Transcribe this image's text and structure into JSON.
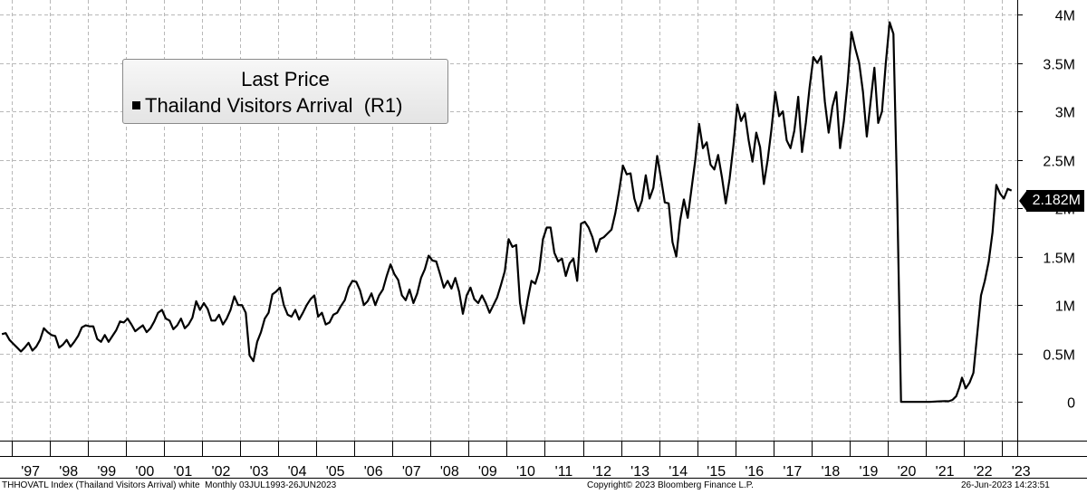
{
  "legend": {
    "title": "Last Price",
    "entry": "Thailand Visitors Arrival  (R1)"
  },
  "last_value_label": "2.182M",
  "footer": {
    "left": "THHOVATL Index (Thailand Visitors Arrival) white  Monthly 03JUL1993-26JUN2023",
    "center": "Copyright© 2023 Bloomberg Finance L.P.",
    "right": "26-Jun-2023 14:23:51"
  },
  "chart_data": {
    "type": "line",
    "title": "",
    "xlabel": "",
    "ylabel": "",
    "y_axis_side": "right",
    "grid": "dashed vertical and horizontal",
    "legend_placement": "top-left",
    "ylim": [
      -400000,
      4150000
    ],
    "yticks": [
      {
        "value": 0,
        "label": "0"
      },
      {
        "value": 500000,
        "label": "0.5M"
      },
      {
        "value": 1000000,
        "label": "1M"
      },
      {
        "value": 1500000,
        "label": "1.5M"
      },
      {
        "value": 2000000,
        "label": "2M"
      },
      {
        "value": 2500000,
        "label": "2.5M"
      },
      {
        "value": 3000000,
        "label": "3M"
      },
      {
        "value": 3500000,
        "label": "3.5M"
      },
      {
        "value": 4000000,
        "label": "4M"
      }
    ],
    "xrange": [
      1996.7,
      2023.4
    ],
    "xticks": [
      "'97",
      "'98",
      "'99",
      "'00",
      "'01",
      "'02",
      "'03",
      "'04",
      "'05",
      "'06",
      "'07",
      "'08",
      "'09",
      "'10",
      "'11",
      "'12",
      "'13",
      "'14",
      "'15",
      "'16",
      "'17",
      "'18",
      "'19",
      "'20",
      "'21",
      "'22",
      "'23"
    ],
    "series": [
      {
        "name": "Thailand Visitors Arrival",
        "color": "#000000",
        "points": [
          [
            1996.75,
            700000
          ],
          [
            1996.85,
            710000
          ],
          [
            1996.95,
            640000
          ],
          [
            1997.05,
            600000
          ],
          [
            1997.15,
            560000
          ],
          [
            1997.25,
            520000
          ],
          [
            1997.35,
            560000
          ],
          [
            1997.45,
            610000
          ],
          [
            1997.55,
            530000
          ],
          [
            1997.65,
            570000
          ],
          [
            1997.75,
            640000
          ],
          [
            1997.85,
            760000
          ],
          [
            1997.95,
            720000
          ],
          [
            1998.05,
            690000
          ],
          [
            1998.15,
            680000
          ],
          [
            1998.25,
            560000
          ],
          [
            1998.35,
            590000
          ],
          [
            1998.45,
            640000
          ],
          [
            1998.55,
            570000
          ],
          [
            1998.65,
            620000
          ],
          [
            1998.75,
            680000
          ],
          [
            1998.85,
            770000
          ],
          [
            1998.95,
            790000
          ],
          [
            1999.05,
            780000
          ],
          [
            1999.15,
            780000
          ],
          [
            1999.25,
            650000
          ],
          [
            1999.35,
            620000
          ],
          [
            1999.45,
            690000
          ],
          [
            1999.55,
            620000
          ],
          [
            1999.65,
            680000
          ],
          [
            1999.75,
            740000
          ],
          [
            1999.85,
            830000
          ],
          [
            1999.95,
            820000
          ],
          [
            2000.05,
            860000
          ],
          [
            2000.15,
            800000
          ],
          [
            2000.25,
            730000
          ],
          [
            2000.35,
            760000
          ],
          [
            2000.45,
            790000
          ],
          [
            2000.55,
            720000
          ],
          [
            2000.65,
            760000
          ],
          [
            2000.75,
            830000
          ],
          [
            2000.85,
            920000
          ],
          [
            2000.95,
            950000
          ],
          [
            2001.05,
            860000
          ],
          [
            2001.15,
            840000
          ],
          [
            2001.25,
            750000
          ],
          [
            2001.35,
            790000
          ],
          [
            2001.45,
            860000
          ],
          [
            2001.55,
            760000
          ],
          [
            2001.65,
            800000
          ],
          [
            2001.75,
            870000
          ],
          [
            2001.85,
            1040000
          ],
          [
            2001.95,
            950000
          ],
          [
            2002.05,
            1020000
          ],
          [
            2002.15,
            960000
          ],
          [
            2002.25,
            840000
          ],
          [
            2002.35,
            840000
          ],
          [
            2002.45,
            900000
          ],
          [
            2002.55,
            800000
          ],
          [
            2002.65,
            860000
          ],
          [
            2002.75,
            950000
          ],
          [
            2002.85,
            1090000
          ],
          [
            2002.95,
            1000000
          ],
          [
            2003.05,
            1000000
          ],
          [
            2003.15,
            920000
          ],
          [
            2003.25,
            480000
          ],
          [
            2003.35,
            420000
          ],
          [
            2003.45,
            620000
          ],
          [
            2003.55,
            720000
          ],
          [
            2003.65,
            860000
          ],
          [
            2003.75,
            920000
          ],
          [
            2003.85,
            1110000
          ],
          [
            2003.95,
            1140000
          ],
          [
            2004.05,
            1180000
          ],
          [
            2004.15,
            1000000
          ],
          [
            2004.25,
            900000
          ],
          [
            2004.35,
            880000
          ],
          [
            2004.45,
            950000
          ],
          [
            2004.55,
            850000
          ],
          [
            2004.65,
            920000
          ],
          [
            2004.75,
            1000000
          ],
          [
            2004.85,
            1060000
          ],
          [
            2004.95,
            1100000
          ],
          [
            2005.05,
            880000
          ],
          [
            2005.15,
            920000
          ],
          [
            2005.25,
            800000
          ],
          [
            2005.35,
            820000
          ],
          [
            2005.45,
            900000
          ],
          [
            2005.55,
            920000
          ],
          [
            2005.65,
            990000
          ],
          [
            2005.75,
            1050000
          ],
          [
            2005.85,
            1180000
          ],
          [
            2005.95,
            1250000
          ],
          [
            2006.05,
            1240000
          ],
          [
            2006.15,
            1150000
          ],
          [
            2006.25,
            1000000
          ],
          [
            2006.35,
            1040000
          ],
          [
            2006.45,
            1120000
          ],
          [
            2006.55,
            1000000
          ],
          [
            2006.65,
            1100000
          ],
          [
            2006.75,
            1160000
          ],
          [
            2006.85,
            1300000
          ],
          [
            2006.95,
            1420000
          ],
          [
            2007.05,
            1320000
          ],
          [
            2007.15,
            1260000
          ],
          [
            2007.25,
            1100000
          ],
          [
            2007.35,
            1050000
          ],
          [
            2007.45,
            1160000
          ],
          [
            2007.55,
            1020000
          ],
          [
            2007.65,
            1120000
          ],
          [
            2007.75,
            1280000
          ],
          [
            2007.85,
            1370000
          ],
          [
            2007.95,
            1510000
          ],
          [
            2008.05,
            1460000
          ],
          [
            2008.15,
            1450000
          ],
          [
            2008.25,
            1320000
          ],
          [
            2008.35,
            1180000
          ],
          [
            2008.45,
            1250000
          ],
          [
            2008.55,
            1170000
          ],
          [
            2008.65,
            1280000
          ],
          [
            2008.75,
            1140000
          ],
          [
            2008.85,
            910000
          ],
          [
            2008.95,
            1100000
          ],
          [
            2009.05,
            1180000
          ],
          [
            2009.15,
            1060000
          ],
          [
            2009.25,
            1020000
          ],
          [
            2009.35,
            1100000
          ],
          [
            2009.45,
            1020000
          ],
          [
            2009.55,
            920000
          ],
          [
            2009.65,
            1000000
          ],
          [
            2009.75,
            1080000
          ],
          [
            2009.85,
            1210000
          ],
          [
            2009.95,
            1350000
          ],
          [
            2010.05,
            1680000
          ],
          [
            2010.15,
            1600000
          ],
          [
            2010.25,
            1620000
          ],
          [
            2010.35,
            1020000
          ],
          [
            2010.45,
            810000
          ],
          [
            2010.55,
            1050000
          ],
          [
            2010.65,
            1250000
          ],
          [
            2010.75,
            1220000
          ],
          [
            2010.85,
            1350000
          ],
          [
            2010.95,
            1680000
          ],
          [
            2011.05,
            1800000
          ],
          [
            2011.15,
            1800000
          ],
          [
            2011.25,
            1540000
          ],
          [
            2011.35,
            1450000
          ],
          [
            2011.45,
            1480000
          ],
          [
            2011.55,
            1300000
          ],
          [
            2011.65,
            1430000
          ],
          [
            2011.75,
            1480000
          ],
          [
            2011.85,
            1250000
          ],
          [
            2011.95,
            1840000
          ],
          [
            2012.05,
            1860000
          ],
          [
            2012.15,
            1800000
          ],
          [
            2012.25,
            1700000
          ],
          [
            2012.35,
            1550000
          ],
          [
            2012.45,
            1680000
          ],
          [
            2012.55,
            1700000
          ],
          [
            2012.65,
            1740000
          ],
          [
            2012.75,
            1780000
          ],
          [
            2012.85,
            1950000
          ],
          [
            2012.95,
            2180000
          ],
          [
            2013.05,
            2440000
          ],
          [
            2013.15,
            2350000
          ],
          [
            2013.25,
            2360000
          ],
          [
            2013.35,
            2100000
          ],
          [
            2013.45,
            1970000
          ],
          [
            2013.55,
            2080000
          ],
          [
            2013.65,
            2340000
          ],
          [
            2013.75,
            2100000
          ],
          [
            2013.85,
            2210000
          ],
          [
            2013.95,
            2540000
          ],
          [
            2014.05,
            2310000
          ],
          [
            2014.15,
            2060000
          ],
          [
            2014.25,
            2050000
          ],
          [
            2014.35,
            1650000
          ],
          [
            2014.45,
            1500000
          ],
          [
            2014.55,
            1870000
          ],
          [
            2014.65,
            2090000
          ],
          [
            2014.75,
            1900000
          ],
          [
            2014.85,
            2200000
          ],
          [
            2014.95,
            2500000
          ],
          [
            2015.05,
            2870000
          ],
          [
            2015.15,
            2620000
          ],
          [
            2015.25,
            2680000
          ],
          [
            2015.35,
            2450000
          ],
          [
            2015.45,
            2400000
          ],
          [
            2015.55,
            2550000
          ],
          [
            2015.65,
            2320000
          ],
          [
            2015.75,
            2050000
          ],
          [
            2015.85,
            2300000
          ],
          [
            2015.95,
            2650000
          ],
          [
            2016.05,
            3070000
          ],
          [
            2016.15,
            2900000
          ],
          [
            2016.25,
            2980000
          ],
          [
            2016.35,
            2700000
          ],
          [
            2016.45,
            2480000
          ],
          [
            2016.55,
            2780000
          ],
          [
            2016.65,
            2630000
          ],
          [
            2016.75,
            2250000
          ],
          [
            2016.85,
            2500000
          ],
          [
            2016.95,
            2820000
          ],
          [
            2017.05,
            3200000
          ],
          [
            2017.15,
            2950000
          ],
          [
            2017.25,
            3000000
          ],
          [
            2017.35,
            2700000
          ],
          [
            2017.45,
            2620000
          ],
          [
            2017.55,
            2800000
          ],
          [
            2017.65,
            3150000
          ],
          [
            2017.75,
            2580000
          ],
          [
            2017.85,
            2880000
          ],
          [
            2017.95,
            3250000
          ],
          [
            2018.05,
            3560000
          ],
          [
            2018.15,
            3500000
          ],
          [
            2018.25,
            3570000
          ],
          [
            2018.35,
            3100000
          ],
          [
            2018.45,
            2780000
          ],
          [
            2018.55,
            3050000
          ],
          [
            2018.65,
            3200000
          ],
          [
            2018.75,
            2620000
          ],
          [
            2018.85,
            2900000
          ],
          [
            2018.95,
            3300000
          ],
          [
            2019.05,
            3820000
          ],
          [
            2019.15,
            3650000
          ],
          [
            2019.25,
            3500000
          ],
          [
            2019.35,
            3200000
          ],
          [
            2019.45,
            2740000
          ],
          [
            2019.55,
            3100000
          ],
          [
            2019.65,
            3450000
          ],
          [
            2019.75,
            2880000
          ],
          [
            2019.85,
            3000000
          ],
          [
            2019.95,
            3500000
          ],
          [
            2020.05,
            3920000
          ],
          [
            2020.15,
            3800000
          ],
          [
            2020.25,
            2100000
          ],
          [
            2020.35,
            0
          ],
          [
            2020.5,
            0
          ],
          [
            2020.7,
            0
          ],
          [
            2020.9,
            0
          ],
          [
            2021.1,
            0
          ],
          [
            2021.3,
            5000
          ],
          [
            2021.5,
            8000
          ],
          [
            2021.6,
            6000
          ],
          [
            2021.7,
            20000
          ],
          [
            2021.8,
            60000
          ],
          [
            2021.88,
            150000
          ],
          [
            2021.95,
            250000
          ],
          [
            2022.05,
            140000
          ],
          [
            2022.15,
            200000
          ],
          [
            2022.25,
            300000
          ],
          [
            2022.35,
            700000
          ],
          [
            2022.45,
            1100000
          ],
          [
            2022.55,
            1250000
          ],
          [
            2022.65,
            1450000
          ],
          [
            2022.75,
            1750000
          ],
          [
            2022.85,
            2240000
          ],
          [
            2022.95,
            2150000
          ],
          [
            2023.05,
            2100000
          ],
          [
            2023.15,
            2200000
          ],
          [
            2023.25,
            2182000
          ]
        ]
      }
    ]
  }
}
